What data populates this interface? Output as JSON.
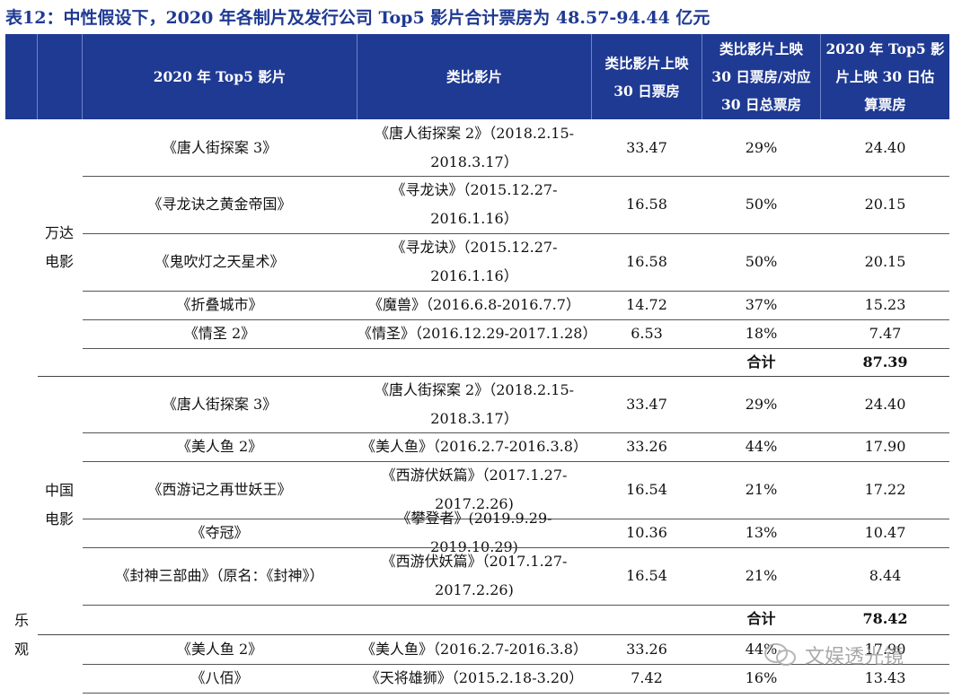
{
  "title": "表12：中性假设下，2020 年各制片及发行公司 Top5 影片合计票房为 48.57-94.44 亿元",
  "headers": [
    "2020 年 Top5 影片",
    "类比影片",
    "类比影片上映\n30 日票房",
    "类比影片上映\n30 日票房/对应\n30 日总票房",
    "2020 年 Top5 影\n片上映 30 日估\n算票房"
  ],
  "scenario_label": "乐\n观",
  "groups": [
    {
      "company": "万达\n电影",
      "rows": [
        {
          "film": "《唐人街探案 3》",
          "comp": "《唐人街探案 2》（2018.2.15-\n2018.3.17）",
          "box": "33.47",
          "ratio": "29%",
          "est": "24.40"
        },
        {
          "film": "《寻龙诀之黄金帝国》",
          "comp": "《寻龙诀》（2015.12.27-\n2016.1.16）",
          "box": "16.58",
          "ratio": "50%",
          "est": "20.15"
        },
        {
          "film": "《鬼吹灯之天星术》",
          "comp": "《寻龙诀》（2015.12.27-\n2016.1.16）",
          "box": "16.58",
          "ratio": "50%",
          "est": "20.15"
        },
        {
          "film": "《折叠城市》",
          "comp": "《魔兽》（2016.6.8-2016.7.7）",
          "box": "14.72",
          "ratio": "37%",
          "est": "15.23"
        },
        {
          "film": "《情圣 2》",
          "comp": "《情圣》（2016.12.29-2017.1.28）",
          "box": "6.53",
          "ratio": "18%",
          "est": "7.47"
        }
      ],
      "total_label": "合计",
      "total_value": "87.39"
    },
    {
      "company": "中国\n电影",
      "rows": [
        {
          "film": "《唐人街探案 3》",
          "comp": "《唐人街探案 2》（2018.2.15-\n2018.3.17）",
          "box": "33.47",
          "ratio": "29%",
          "est": "24.40"
        },
        {
          "film": "《美人鱼 2》",
          "comp": "《美人鱼》（2016.2.7-2016.3.8）",
          "box": "33.26",
          "ratio": "44%",
          "est": "17.90"
        },
        {
          "film": "《西游记之再世妖王》",
          "comp": "《西游伏妖篇》（2017.1.27-\n2017.2.26)",
          "box": "16.54",
          "ratio": "21%",
          "est": "17.22"
        },
        {
          "film": "《夺冠》",
          "comp": "《攀登者》(2019.9.29-2019.10.29)",
          "box": "10.36",
          "ratio": "13%",
          "est": "10.47"
        },
        {
          "film": "《封神三部曲》（原名：《封神》）",
          "comp": "《西游伏妖篇》（2017.1.27-\n2017.2.26)",
          "box": "16.54",
          "ratio": "21%",
          "est": "8.44"
        }
      ],
      "total_label": "合计",
      "total_value": "78.42"
    },
    {
      "company": "",
      "rows": [
        {
          "film": "《美人鱼 2》",
          "comp": "《美人鱼》（2016.2.7-2016.3.8）",
          "box": "33.26",
          "ratio": "44%",
          "est": "17.90"
        },
        {
          "film": "《八佰》",
          "comp": "《天将雄狮》（2015.2.18-3.20）",
          "box": "7.42",
          "ratio": "16%",
          "est": "13.43"
        }
      ]
    }
  ],
  "watermark": "文娱透光镜",
  "colors": {
    "header_bg": "#1f3a93",
    "title": "#1f3a93"
  }
}
